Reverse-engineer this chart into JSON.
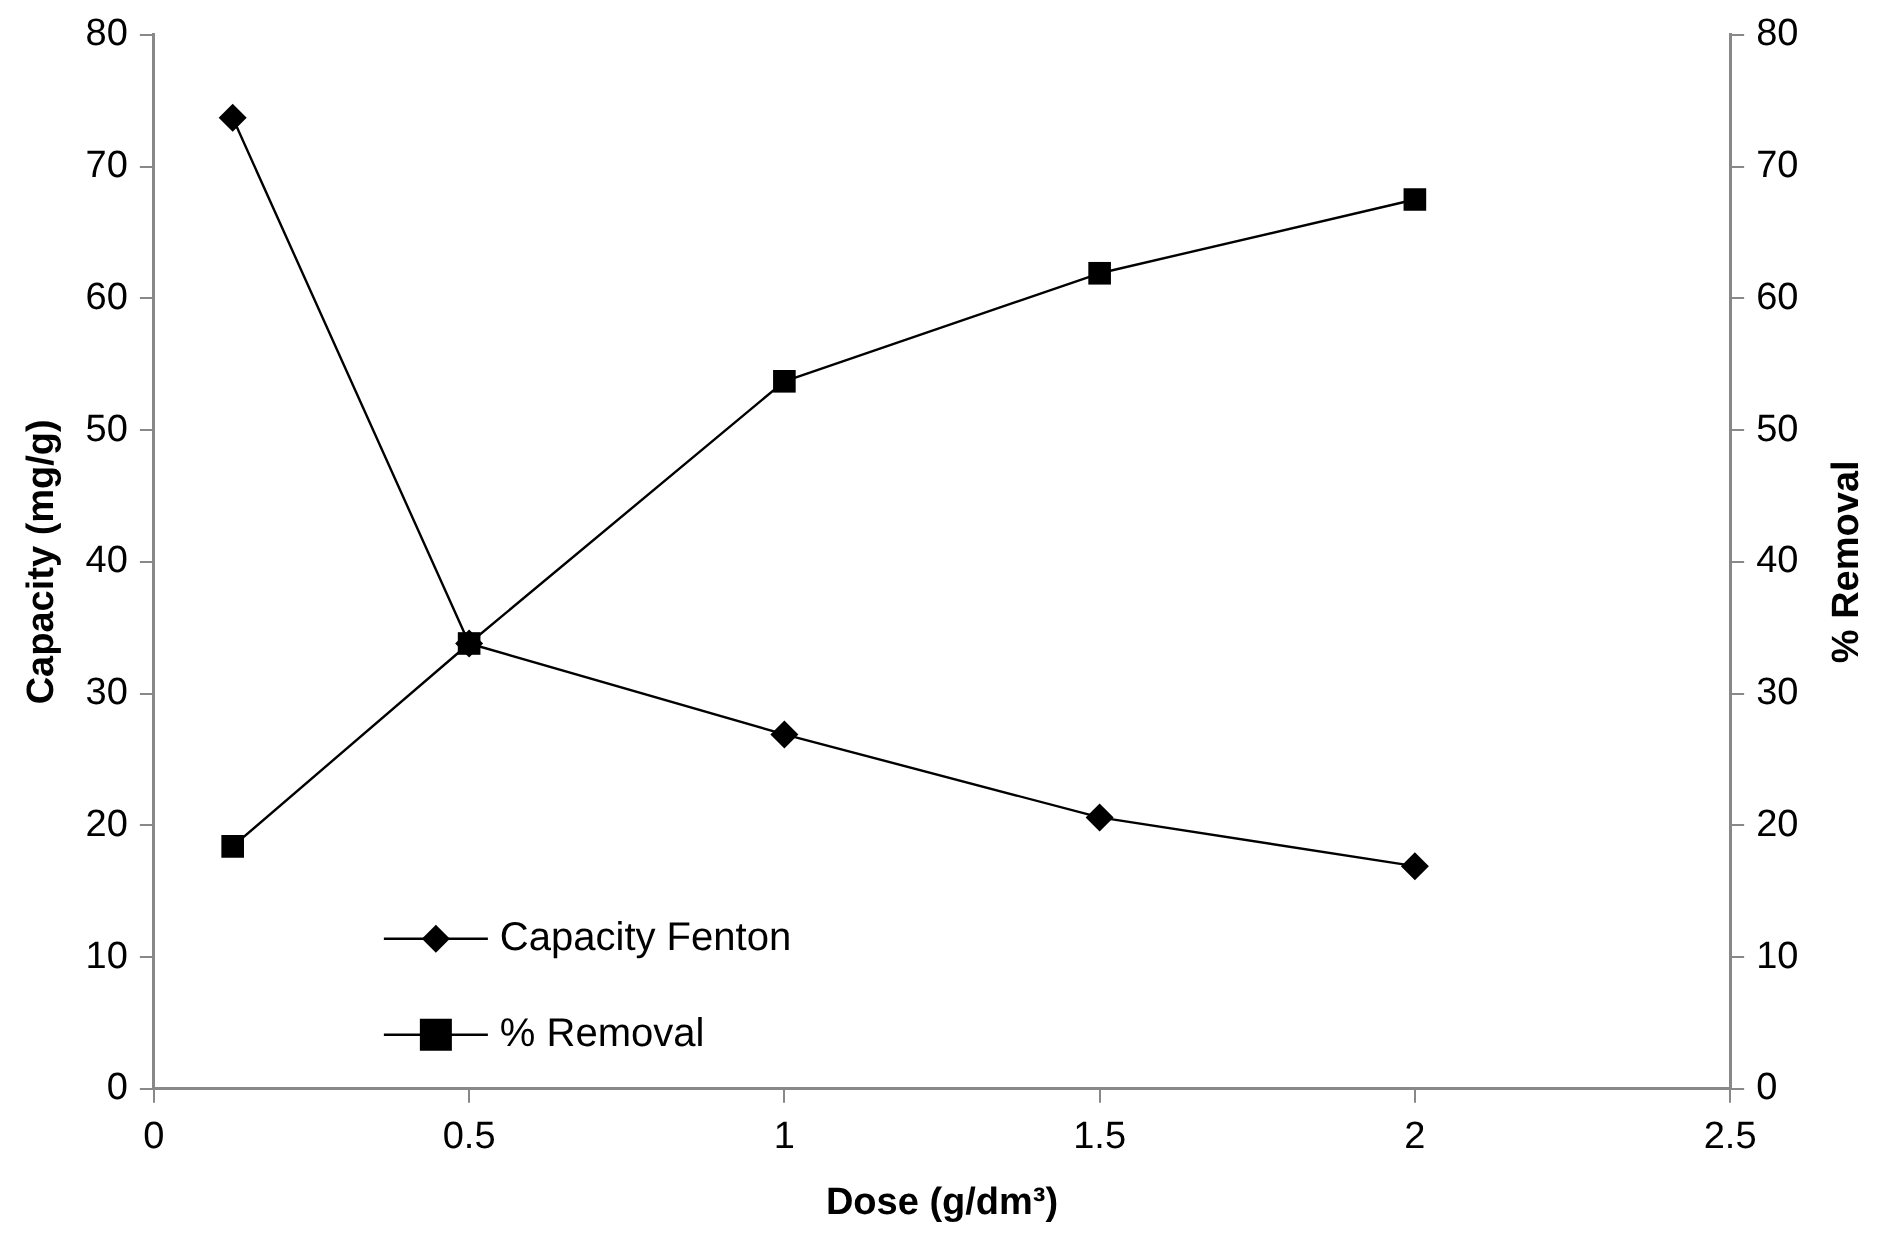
{
  "chart_data": {
    "type": "line",
    "xlabel": "Dose (g/dm³)",
    "ylabel": "Capacity (mg/g)",
    "y2label": "% Removal",
    "x": [
      0.125,
      0.5,
      1,
      1.5,
      2
    ],
    "series": [
      {
        "name": "Capacity Fenton",
        "color": "#000000",
        "marker": "diamond",
        "values": [
          73.7,
          33.8,
          26.9,
          20.6,
          16.9
        ]
      },
      {
        "name": "% Removal",
        "color": "#000000",
        "marker": "square",
        "axis": "y2",
        "values": [
          18.4,
          33.8,
          53.7,
          61.9,
          67.5
        ]
      }
    ],
    "xlim": [
      0,
      2.5
    ],
    "xticks": [
      0,
      0.5,
      1,
      1.5,
      2,
      2.5
    ],
    "ylim": [
      0,
      80
    ],
    "yticks": [
      0,
      10,
      20,
      30,
      40,
      50,
      60,
      70,
      80
    ],
    "y2lim": [
      0,
      80
    ],
    "y2ticks": [
      0,
      10,
      20,
      30,
      40,
      50,
      60,
      70,
      80
    ],
    "grid": false,
    "legend": "bottom left",
    "line_style": "solid"
  }
}
